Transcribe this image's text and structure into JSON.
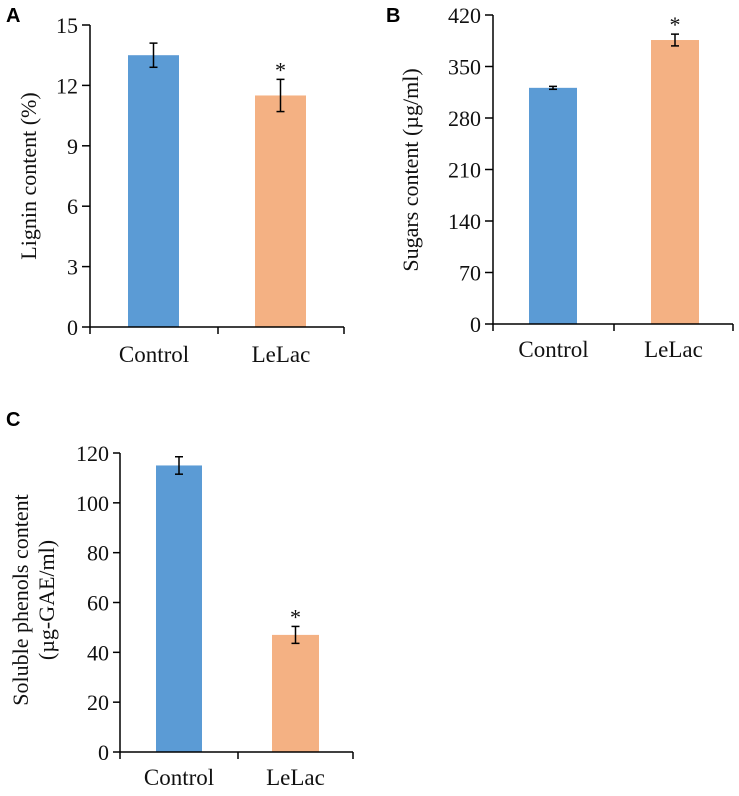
{
  "colors": {
    "control": "#5B9BD5",
    "lelac": "#F4B183",
    "axis": "#000000"
  },
  "chart_data": [
    {
      "panel": "A",
      "type": "bar",
      "categories": [
        "Control",
        "LeLac"
      ],
      "values": [
        13.5,
        11.5
      ],
      "errors": [
        0.6,
        0.8
      ],
      "significance": [
        "",
        "*"
      ],
      "ylabel": "Lignin content (%)",
      "ylim": [
        0,
        15
      ],
      "yticks": [
        0,
        3,
        6,
        9,
        12,
        15
      ],
      "grid": false
    },
    {
      "panel": "B",
      "type": "bar",
      "categories": [
        "Control",
        "LeLac"
      ],
      "values": [
        321,
        386
      ],
      "errors": [
        2,
        8
      ],
      "significance": [
        "",
        "*"
      ],
      "ylabel": "Sugars  content (µg/ml)",
      "ylim": [
        0,
        420
      ],
      "yticks": [
        0,
        70,
        140,
        210,
        280,
        350,
        420
      ],
      "grid": false
    },
    {
      "panel": "C",
      "type": "bar",
      "categories": [
        "Control",
        "LeLac"
      ],
      "values": [
        115,
        47
      ],
      "errors": [
        3.5,
        3.4
      ],
      "significance": [
        "",
        "*"
      ],
      "ylabel": [
        "Soluble phenols content",
        "(µg-GAE/ml)"
      ],
      "ylim": [
        0,
        120
      ],
      "yticks": [
        0,
        20,
        40,
        60,
        80,
        100,
        120
      ],
      "grid": false
    }
  ]
}
